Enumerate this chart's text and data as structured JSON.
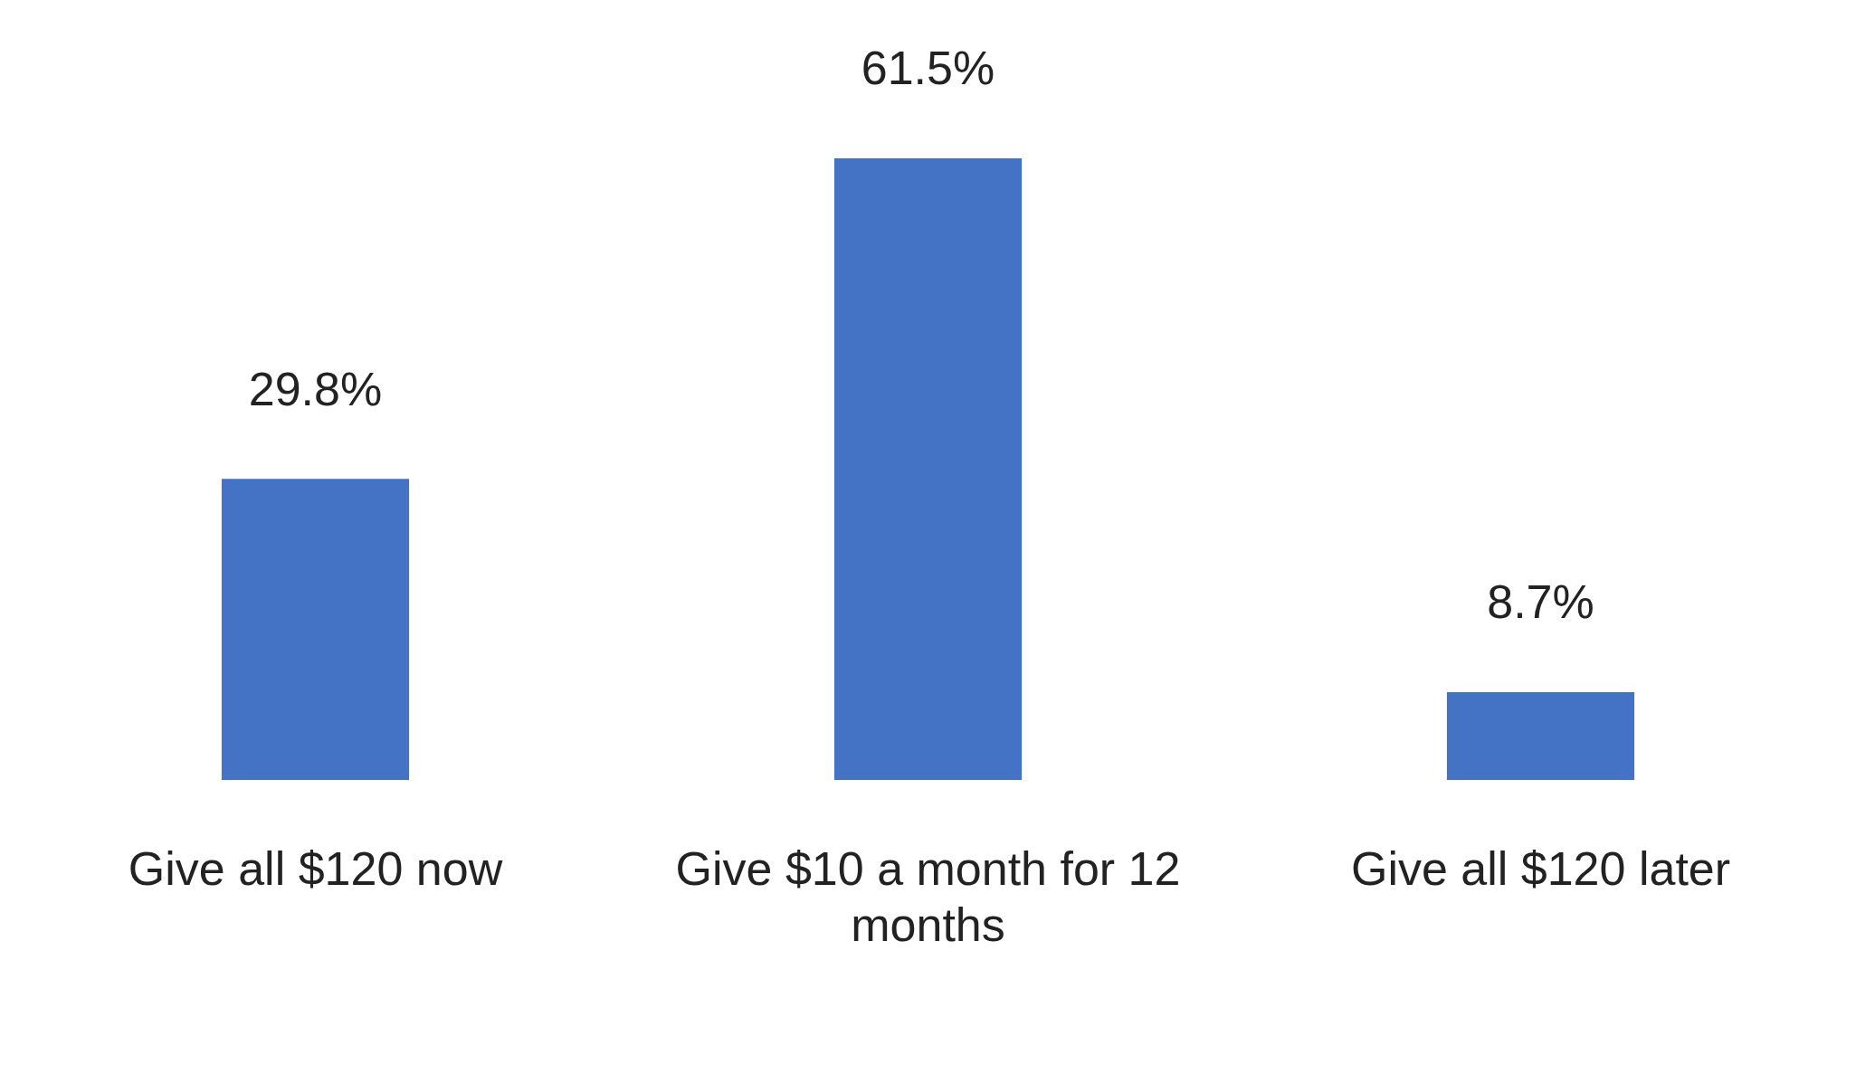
{
  "chart_data": {
    "type": "bar",
    "categories": [
      "Give all $120 now",
      "Give $10 a month for 12 months",
      "Give all $120 later"
    ],
    "values": [
      29.8,
      61.5,
      8.7
    ],
    "color": "#4472c4",
    "value_labels": [
      "29.8%",
      "61.5%",
      "8.7%"
    ],
    "grid": false,
    "legend": false
  }
}
